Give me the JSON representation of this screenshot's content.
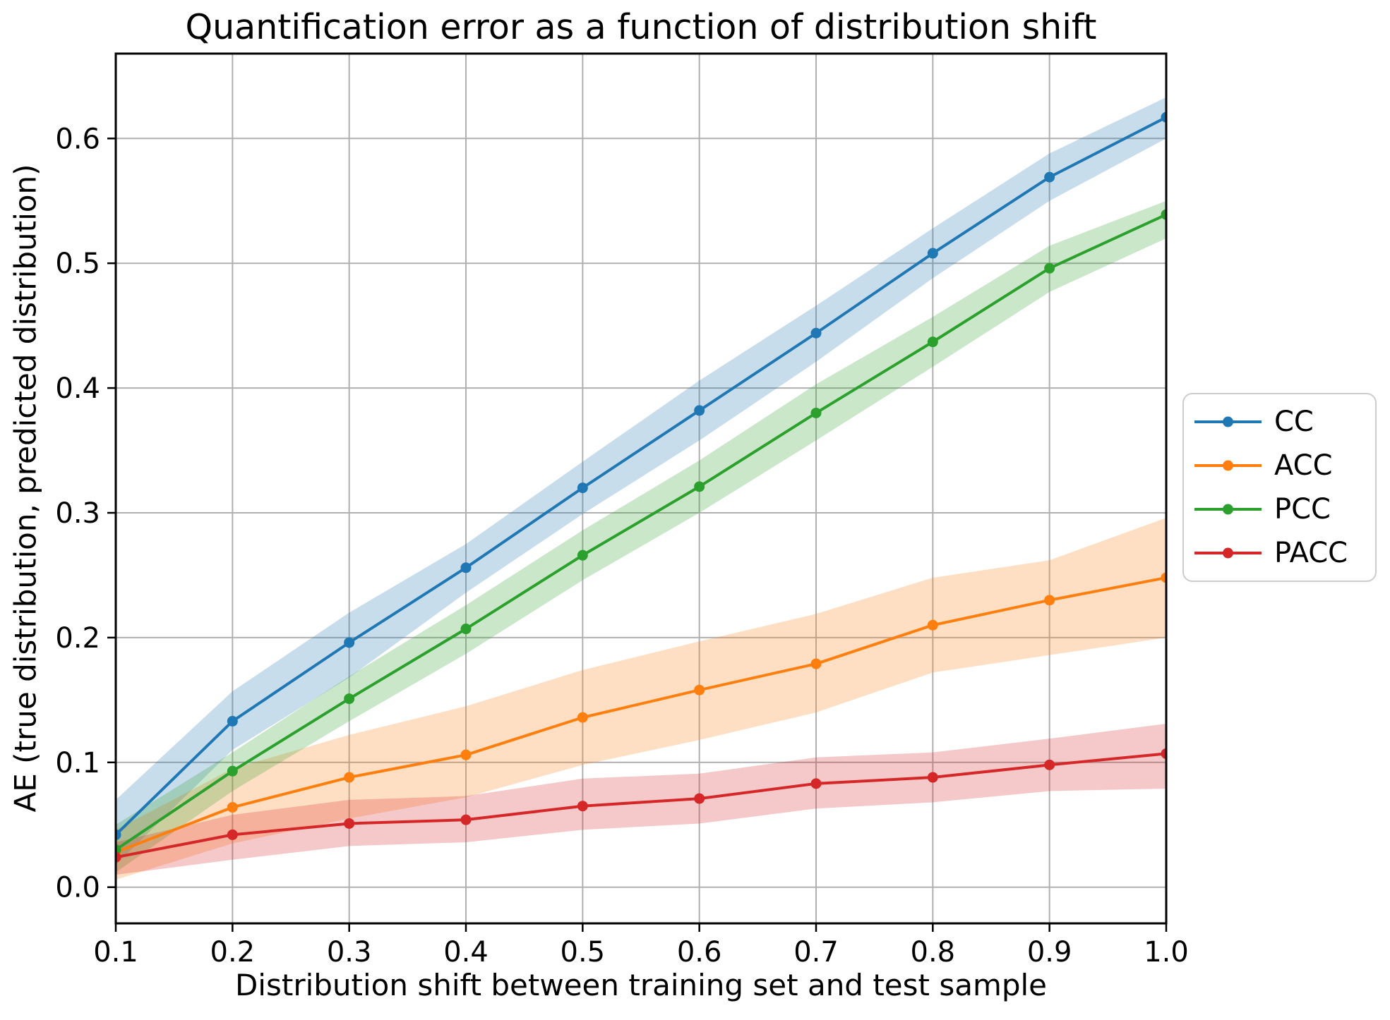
{
  "chart_data": {
    "type": "line",
    "title": "Quantification error as a function of distribution shift",
    "xlabel": "Distribution shift between training set and test sample",
    "ylabel": "AE (true distribution, predicted distribution)",
    "x": [
      0.1,
      0.2,
      0.3,
      0.4,
      0.5,
      0.6,
      0.7,
      0.8,
      0.9,
      1.0
    ],
    "x_tick_labels": [
      "0.1",
      "0.2",
      "0.3",
      "0.4",
      "0.5",
      "0.6",
      "0.7",
      "0.8",
      "0.9",
      "1.0"
    ],
    "y_ticks": [
      0.0,
      0.1,
      0.2,
      0.3,
      0.4,
      0.5,
      0.6
    ],
    "y_tick_labels": [
      "0.0",
      "0.1",
      "0.2",
      "0.3",
      "0.4",
      "0.5",
      "0.6"
    ],
    "xlim": [
      0.1,
      1.0
    ],
    "ylim": [
      -0.029,
      0.668
    ],
    "grid": true,
    "grid_color": "#b0b0b0",
    "band_opacity": 0.25,
    "legend_position": "outside-right",
    "series": [
      {
        "name": "CC",
        "color": "#1f77b4",
        "values": [
          0.042,
          0.133,
          0.196,
          0.256,
          0.32,
          0.382,
          0.444,
          0.508,
          0.569,
          0.617
        ],
        "band_upper": [
          0.07,
          0.157,
          0.22,
          0.275,
          0.341,
          0.406,
          0.466,
          0.528,
          0.588,
          0.633
        ],
        "band_lower": [
          0.018,
          0.11,
          0.168,
          0.236,
          0.299,
          0.358,
          0.421,
          0.488,
          0.55,
          0.6
        ]
      },
      {
        "name": "ACC",
        "color": "#ff7f0e",
        "values": [
          0.028,
          0.064,
          0.088,
          0.106,
          0.136,
          0.158,
          0.179,
          0.21,
          0.23,
          0.248
        ],
        "band_upper": [
          0.046,
          0.095,
          0.122,
          0.145,
          0.174,
          0.197,
          0.219,
          0.248,
          0.262,
          0.296
        ],
        "band_lower": [
          0.006,
          0.035,
          0.055,
          0.072,
          0.098,
          0.118,
          0.14,
          0.172,
          0.186,
          0.2
        ]
      },
      {
        "name": "PCC",
        "color": "#2ca02c",
        "values": [
          0.03,
          0.093,
          0.151,
          0.207,
          0.266,
          0.321,
          0.38,
          0.437,
          0.496,
          0.539
        ],
        "band_upper": [
          0.05,
          0.108,
          0.169,
          0.226,
          0.286,
          0.342,
          0.403,
          0.457,
          0.514,
          0.55
        ],
        "band_lower": [
          0.012,
          0.077,
          0.133,
          0.187,
          0.246,
          0.3,
          0.358,
          0.417,
          0.477,
          0.52
        ]
      },
      {
        "name": "PACC",
        "color": "#d62728",
        "values": [
          0.024,
          0.042,
          0.051,
          0.054,
          0.065,
          0.071,
          0.083,
          0.088,
          0.098,
          0.107
        ],
        "band_upper": [
          0.036,
          0.058,
          0.07,
          0.073,
          0.087,
          0.091,
          0.104,
          0.108,
          0.119,
          0.131
        ],
        "band_lower": [
          0.01,
          0.022,
          0.033,
          0.036,
          0.046,
          0.051,
          0.063,
          0.068,
          0.077,
          0.079
        ]
      }
    ]
  }
}
